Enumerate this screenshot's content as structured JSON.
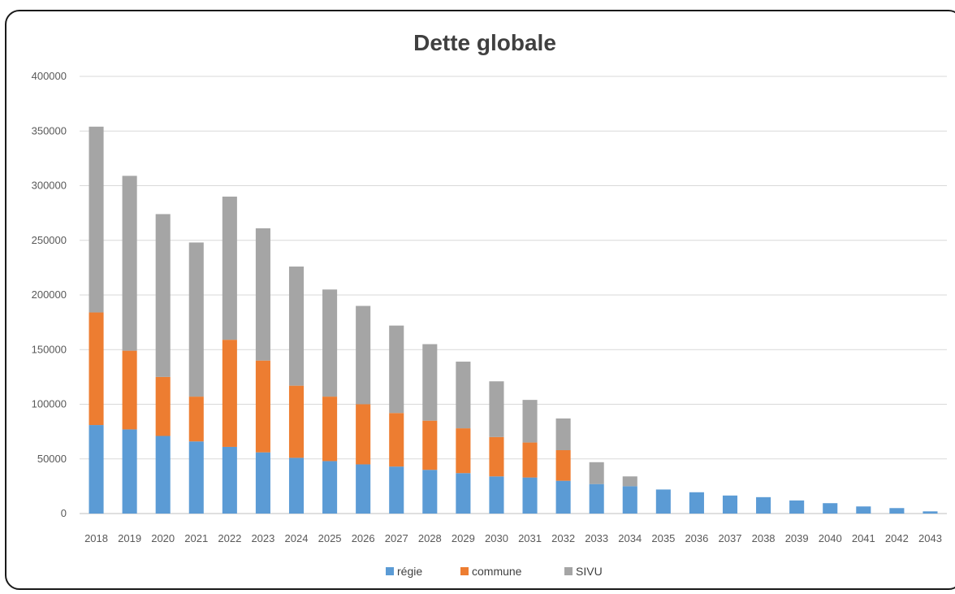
{
  "chart_data": {
    "type": "bar",
    "stacked": true,
    "title": "Dette globale",
    "xlabel": "",
    "ylabel": "",
    "ylim": [
      0,
      400000
    ],
    "yticks": [
      0,
      50000,
      100000,
      150000,
      200000,
      250000,
      300000,
      350000,
      400000
    ],
    "grid": true,
    "legend_position": "bottom",
    "categories": [
      "2018",
      "2019",
      "2020",
      "2021",
      "2022",
      "2023",
      "2024",
      "2025",
      "2026",
      "2027",
      "2028",
      "2029",
      "2030",
      "2031",
      "2032",
      "2033",
      "2034",
      "2035",
      "2036",
      "2037",
      "2038",
      "2039",
      "2040",
      "2041",
      "2042",
      "2043"
    ],
    "series": [
      {
        "name": "régie",
        "color": "#5b9bd5",
        "values": [
          81000,
          77000,
          71000,
          66000,
          61000,
          56000,
          51000,
          48000,
          45000,
          43000,
          40000,
          37000,
          34000,
          33000,
          30000,
          27000,
          25000,
          22000,
          19500,
          16500,
          15000,
          12000,
          9500,
          6500,
          5000,
          2000
        ]
      },
      {
        "name": "commune",
        "color": "#ed7d31",
        "values": [
          103000,
          72000,
          54000,
          41000,
          98000,
          84000,
          66000,
          59000,
          55000,
          49000,
          45000,
          41000,
          36000,
          32000,
          28000,
          0,
          0,
          0,
          0,
          0,
          0,
          0,
          0,
          0,
          0,
          0
        ]
      },
      {
        "name": "SIVU",
        "color": "#a5a5a5",
        "values": [
          170000,
          160000,
          149000,
          141000,
          131000,
          121000,
          109000,
          98000,
          90000,
          80000,
          70000,
          61000,
          51000,
          39000,
          29000,
          20000,
          9000,
          0,
          0,
          0,
          0,
          0,
          0,
          0,
          0,
          0
        ]
      }
    ]
  }
}
